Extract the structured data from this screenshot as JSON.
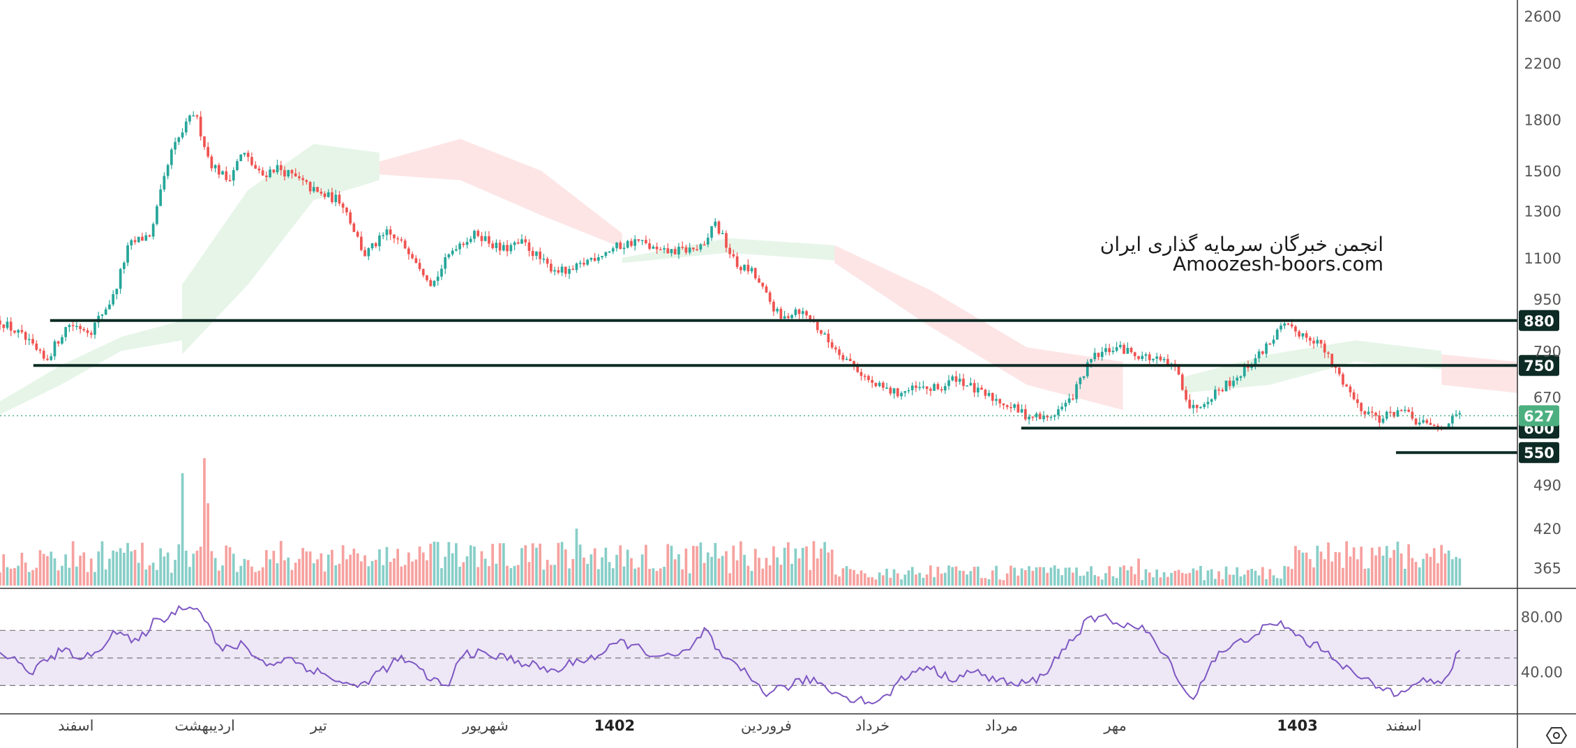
{
  "watermark": {
    "line1": "انجمن خبرگان سرمایه گذاری ایران",
    "line2": "Amoozesh-boors.com"
  },
  "colors": {
    "up": "#26a69a",
    "down": "#ef5350",
    "level": "#0d2b24",
    "rsi": "#7e57c2",
    "rsi_band": "#ede7f6",
    "price_tag": "#4caf7f",
    "cloud_green": "#e3f4e6",
    "cloud_red": "#fde2e3"
  },
  "chart_data": {
    "type": "candlestick",
    "price_axis": {
      "scale": "log",
      "range": [
        340,
        2700
      ],
      "ticks": [
        "2600",
        "2200",
        "1800",
        "1500",
        "1300",
        "1100",
        "950",
        "790",
        "670",
        "490",
        "420",
        "365"
      ]
    },
    "time_axis": {
      "labels": [
        {
          "text": "اسفند",
          "bold": false
        },
        {
          "text": "اردیبهشت",
          "bold": false
        },
        {
          "text": "تیر",
          "bold": false
        },
        {
          "text": "شهریور",
          "bold": false
        },
        {
          "text": "1402",
          "bold": true
        },
        {
          "text": "فروردین",
          "bold": false
        },
        {
          "text": "خرداد",
          "bold": false
        },
        {
          "text": "مرداد",
          "bold": false
        },
        {
          "text": "مهر",
          "bold": false
        },
        {
          "text": "1403",
          "bold": true
        },
        {
          "text": "اسفند",
          "bold": false
        }
      ],
      "label_t": [
        0.05,
        0.135,
        0.21,
        0.32,
        0.405,
        0.505,
        0.575,
        0.66,
        0.735,
        0.855,
        0.925
      ]
    },
    "close_path": [
      [
        0.0,
        880
      ],
      [
        0.015,
        830
      ],
      [
        0.03,
        760
      ],
      [
        0.045,
        870
      ],
      [
        0.06,
        850
      ],
      [
        0.075,
        960
      ],
      [
        0.085,
        1150
      ],
      [
        0.1,
        1200
      ],
      [
        0.113,
        1600
      ],
      [
        0.128,
        1850
      ],
      [
        0.138,
        1550
      ],
      [
        0.15,
        1450
      ],
      [
        0.16,
        1600
      ],
      [
        0.172,
        1470
      ],
      [
        0.182,
        1520
      ],
      [
        0.195,
        1460
      ],
      [
        0.21,
        1380
      ],
      [
        0.225,
        1350
      ],
      [
        0.24,
        1110
      ],
      [
        0.255,
        1200
      ],
      [
        0.27,
        1130
      ],
      [
        0.285,
        1000
      ],
      [
        0.3,
        1150
      ],
      [
        0.315,
        1200
      ],
      [
        0.33,
        1130
      ],
      [
        0.345,
        1160
      ],
      [
        0.36,
        1070
      ],
      [
        0.375,
        1040
      ],
      [
        0.39,
        1100
      ],
      [
        0.405,
        1140
      ],
      [
        0.42,
        1170
      ],
      [
        0.435,
        1120
      ],
      [
        0.45,
        1130
      ],
      [
        0.465,
        1140
      ],
      [
        0.47,
        1260
      ],
      [
        0.485,
        1070
      ],
      [
        0.495,
        1050
      ],
      [
        0.505,
        960
      ],
      [
        0.515,
        880
      ],
      [
        0.525,
        920
      ],
      [
        0.535,
        880
      ],
      [
        0.545,
        820
      ],
      [
        0.56,
        760
      ],
      [
        0.575,
        700
      ],
      [
        0.59,
        680
      ],
      [
        0.605,
        690
      ],
      [
        0.62,
        690
      ],
      [
        0.63,
        720
      ],
      [
        0.645,
        680
      ],
      [
        0.66,
        660
      ],
      [
        0.675,
        630
      ],
      [
        0.69,
        620
      ],
      [
        0.705,
        660
      ],
      [
        0.72,
        770
      ],
      [
        0.735,
        800
      ],
      [
        0.75,
        780
      ],
      [
        0.765,
        760
      ],
      [
        0.775,
        740
      ],
      [
        0.785,
        640
      ],
      [
        0.8,
        680
      ],
      [
        0.815,
        720
      ],
      [
        0.83,
        780
      ],
      [
        0.845,
        860
      ],
      [
        0.858,
        840
      ],
      [
        0.868,
        820
      ],
      [
        0.88,
        740
      ],
      [
        0.895,
        650
      ],
      [
        0.91,
        620
      ],
      [
        0.922,
        640
      ],
      [
        0.935,
        610
      ],
      [
        0.948,
        600
      ],
      [
        0.962,
        627
      ]
    ],
    "cloud": [
      {
        "color": "green",
        "start": 0.0,
        "end": 0.12,
        "top": [
          660,
          750,
          830,
          880
        ],
        "bottom": [
          630,
          700,
          790,
          820
        ]
      },
      {
        "color": "green",
        "start": 0.12,
        "end": 0.25,
        "top": [
          1000,
          1400,
          1650,
          1600
        ],
        "bottom": [
          780,
          1000,
          1350,
          1450
        ]
      },
      {
        "color": "red",
        "start": 0.25,
        "end": 0.41,
        "top": [
          1550,
          1680,
          1500,
          1200
        ],
        "bottom": [
          1480,
          1450,
          1280,
          1140
        ]
      },
      {
        "color": "green",
        "start": 0.41,
        "end": 0.55,
        "top": [
          1100,
          1180,
          1150
        ],
        "bottom": [
          1080,
          1120,
          1090
        ]
      },
      {
        "color": "red",
        "start": 0.55,
        "end": 0.74,
        "top": [
          1150,
          980,
          800,
          760
        ],
        "bottom": [
          1080,
          860,
          700,
          640
        ]
      },
      {
        "color": "green",
        "start": 0.78,
        "end": 0.95,
        "top": [
          720,
          780,
          820,
          790
        ],
        "bottom": [
          680,
          700,
          760,
          740
        ]
      },
      {
        "color": "red",
        "start": 0.95,
        "end": 1.0,
        "top": [
          780,
          760
        ],
        "bottom": [
          700,
          680
        ]
      }
    ],
    "levels": [
      {
        "value": 880,
        "label": "880",
        "from_t": 0.033,
        "to_t": 1.0
      },
      {
        "value": 750,
        "label": "750",
        "from_t": 0.022,
        "to_t": 1.0
      },
      {
        "value": 600,
        "label": "600",
        "from_t": 0.673,
        "to_t": 1.0
      },
      {
        "value": 550,
        "label": "550",
        "from_t": 0.92,
        "to_t": 1.0
      }
    ],
    "current_price": {
      "value": 627,
      "label": "627"
    },
    "volume_spikes": [
      [
        0.08,
        0.25
      ],
      [
        0.12,
        0.75
      ],
      [
        0.135,
        0.85
      ],
      [
        0.137,
        0.55
      ],
      [
        0.38,
        0.38
      ],
      [
        0.62,
        0.08
      ],
      [
        0.75,
        0.18
      ],
      [
        0.86,
        0.22
      ]
    ],
    "rsi": {
      "range": [
        10,
        100
      ],
      "ticks": [
        "80.00",
        "40.00"
      ],
      "levels": [
        70,
        50,
        30
      ],
      "path": [
        [
          0.0,
          55
        ],
        [
          0.02,
          40
        ],
        [
          0.04,
          55
        ],
        [
          0.06,
          50
        ],
        [
          0.075,
          70
        ],
        [
          0.09,
          60
        ],
        [
          0.1,
          75
        ],
        [
          0.11,
          80
        ],
        [
          0.125,
          90
        ],
        [
          0.135,
          80
        ],
        [
          0.145,
          55
        ],
        [
          0.16,
          60
        ],
        [
          0.175,
          45
        ],
        [
          0.19,
          50
        ],
        [
          0.205,
          42
        ],
        [
          0.22,
          35
        ],
        [
          0.235,
          28
        ],
        [
          0.25,
          40
        ],
        [
          0.265,
          50
        ],
        [
          0.28,
          38
        ],
        [
          0.295,
          28
        ],
        [
          0.305,
          55
        ],
        [
          0.32,
          52
        ],
        [
          0.335,
          50
        ],
        [
          0.35,
          45
        ],
        [
          0.365,
          40
        ],
        [
          0.38,
          48
        ],
        [
          0.395,
          52
        ],
        [
          0.41,
          62
        ],
        [
          0.425,
          55
        ],
        [
          0.44,
          50
        ],
        [
          0.455,
          55
        ],
        [
          0.465,
          72
        ],
        [
          0.475,
          50
        ],
        [
          0.49,
          40
        ],
        [
          0.505,
          25
        ],
        [
          0.52,
          30
        ],
        [
          0.535,
          35
        ],
        [
          0.55,
          25
        ],
        [
          0.565,
          20
        ],
        [
          0.58,
          18
        ],
        [
          0.595,
          35
        ],
        [
          0.61,
          45
        ],
        [
          0.625,
          35
        ],
        [
          0.64,
          40
        ],
        [
          0.655,
          35
        ],
        [
          0.67,
          30
        ],
        [
          0.685,
          35
        ],
        [
          0.7,
          55
        ],
        [
          0.715,
          75
        ],
        [
          0.725,
          80
        ],
        [
          0.74,
          75
        ],
        [
          0.755,
          70
        ],
        [
          0.765,
          55
        ],
        [
          0.775,
          40
        ],
        [
          0.785,
          18
        ],
        [
          0.8,
          50
        ],
        [
          0.815,
          60
        ],
        [
          0.83,
          70
        ],
        [
          0.845,
          75
        ],
        [
          0.86,
          62
        ],
        [
          0.875,
          55
        ],
        [
          0.89,
          40
        ],
        [
          0.905,
          30
        ],
        [
          0.92,
          25
        ],
        [
          0.935,
          35
        ],
        [
          0.95,
          30
        ],
        [
          0.962,
          55
        ]
      ]
    }
  }
}
